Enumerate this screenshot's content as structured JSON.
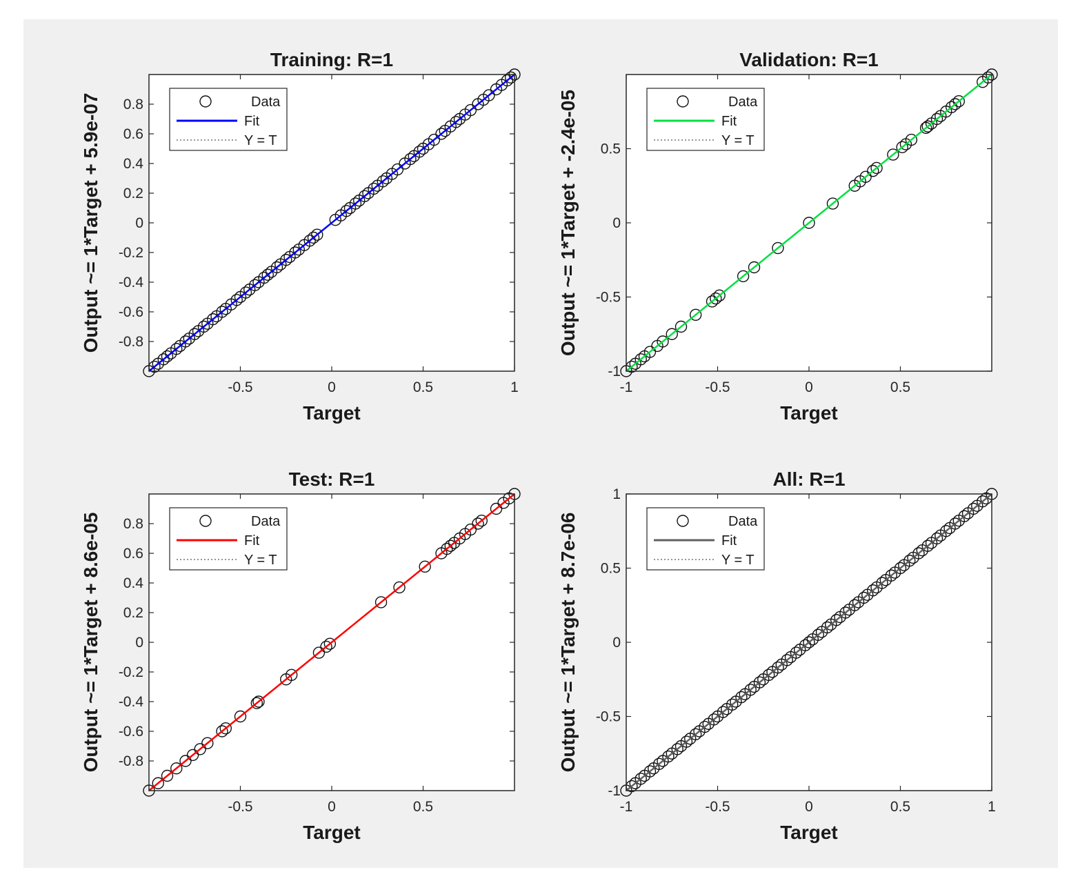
{
  "chart_data": [
    {
      "type": "scatter",
      "title": "Training: R=1",
      "xlabel": "Target",
      "ylabel": "Output ~= 1*Target + 5.9e-07",
      "xlim": [
        -1,
        1
      ],
      "ylim": [
        -1,
        1
      ],
      "xticks": [
        -0.5,
        0,
        0.5,
        1
      ],
      "xticklabels": [
        "-0.5",
        "0",
        "0.5",
        "1"
      ],
      "yticks": [
        -0.8,
        -0.6,
        -0.4,
        -0.2,
        0,
        0.2,
        0.4,
        0.6,
        0.8
      ],
      "yticklabels": [
        "-0.8",
        "-0.6",
        "-0.4",
        "-0.2",
        "0",
        "0.2",
        "0.4",
        "0.6",
        "0.8"
      ],
      "fit_color": "#0000ff",
      "fit": {
        "slope": 1,
        "intercept": 5.9e-07
      },
      "legend": {
        "position": "top-left",
        "entries": [
          "Data",
          "Fit",
          "Y = T"
        ]
      },
      "series": [
        {
          "name": "Data",
          "x": [
            -1,
            -0.97,
            -0.95,
            -0.92,
            -0.9,
            -0.88,
            -0.85,
            -0.83,
            -0.8,
            -0.78,
            -0.75,
            -0.73,
            -0.7,
            -0.68,
            -0.65,
            -0.63,
            -0.6,
            -0.58,
            -0.55,
            -0.52,
            -0.5,
            -0.47,
            -0.45,
            -0.42,
            -0.4,
            -0.37,
            -0.35,
            -0.33,
            -0.3,
            -0.28,
            -0.25,
            -0.23,
            -0.2,
            -0.18,
            -0.15,
            -0.12,
            -0.1,
            -0.08,
            0.02,
            0.05,
            0.08,
            0.1,
            0.13,
            0.15,
            0.18,
            0.2,
            0.23,
            0.25,
            0.28,
            0.3,
            0.33,
            0.36,
            0.4,
            0.43,
            0.45,
            0.48,
            0.5,
            0.53,
            0.56,
            0.6,
            0.62,
            0.65,
            0.68,
            0.7,
            0.73,
            0.76,
            0.8,
            0.83,
            0.86,
            0.9,
            0.93,
            0.96,
            0.98,
            1
          ]
        }
      ]
    },
    {
      "type": "scatter",
      "title": "Validation: R=1",
      "xlabel": "Target",
      "ylabel": "Output ~= 1*Target + -2.4e-05",
      "xlim": [
        -1,
        1
      ],
      "ylim": [
        -1,
        1
      ],
      "xticks": [
        -1,
        -0.5,
        0,
        0.5
      ],
      "xticklabels": [
        "-1",
        "-0.5",
        "0",
        "0.5"
      ],
      "yticks": [
        -1,
        -0.5,
        0,
        0.5
      ],
      "yticklabels": [
        "-1",
        "-0.5",
        "0",
        "0.5"
      ],
      "fit_color": "#00e040",
      "fit": {
        "slope": 1,
        "intercept": -2.4e-05
      },
      "legend": {
        "position": "top-left",
        "entries": [
          "Data",
          "Fit",
          "Y = T"
        ]
      },
      "series": [
        {
          "name": "Data",
          "x": [
            -1,
            -0.97,
            -0.95,
            -0.92,
            -0.9,
            -0.87,
            -0.83,
            -0.8,
            -0.75,
            -0.7,
            -0.62,
            -0.53,
            -0.51,
            -0.49,
            -0.36,
            -0.3,
            -0.17,
            0,
            0.13,
            0.25,
            0.28,
            0.31,
            0.35,
            0.37,
            0.46,
            0.51,
            0.53,
            0.56,
            0.64,
            0.65,
            0.67,
            0.7,
            0.72,
            0.75,
            0.78,
            0.8,
            0.82,
            0.95,
            0.98,
            1
          ]
        }
      ]
    },
    {
      "type": "scatter",
      "title": "Test: R=1",
      "xlabel": "Target",
      "ylabel": "Output ~= 1*Target + 8.6e-05",
      "xlim": [
        -1,
        1
      ],
      "ylim": [
        -1,
        1
      ],
      "xticks": [
        -0.5,
        0,
        0.5
      ],
      "xticklabels": [
        "-0.5",
        "0",
        "0.5"
      ],
      "yticks": [
        -0.8,
        -0.6,
        -0.4,
        -0.2,
        0,
        0.2,
        0.4,
        0.6,
        0.8
      ],
      "yticklabels": [
        "-0.8",
        "-0.6",
        "-0.4",
        "-0.2",
        "0",
        "0.2",
        "0.4",
        "0.6",
        "0.8"
      ],
      "fit_color": "#ff0000",
      "fit": {
        "slope": 1,
        "intercept": 8.6e-05
      },
      "legend": {
        "position": "top-left",
        "entries": [
          "Data",
          "Fit",
          "Y = T"
        ]
      },
      "series": [
        {
          "name": "Data",
          "x": [
            -1,
            -0.95,
            -0.9,
            -0.85,
            -0.8,
            -0.76,
            -0.72,
            -0.68,
            -0.6,
            -0.58,
            -0.5,
            -0.41,
            -0.4,
            -0.25,
            -0.22,
            -0.07,
            -0.03,
            -0.01,
            0.27,
            0.37,
            0.51,
            0.6,
            0.63,
            0.65,
            0.67,
            0.7,
            0.73,
            0.76,
            0.8,
            0.82,
            0.9,
            0.94,
            0.97,
            1
          ]
        }
      ]
    },
    {
      "type": "scatter",
      "title": "All: R=1",
      "xlabel": "Target",
      "ylabel": "Output ~= 1*Target + 8.7e-06",
      "xlim": [
        -1,
        1
      ],
      "ylim": [
        -1,
        1
      ],
      "xticks": [
        -1,
        -0.5,
        0,
        0.5,
        1
      ],
      "xticklabels": [
        "-1",
        "-0.5",
        "0",
        "0.5",
        "1"
      ],
      "yticks": [
        -1,
        -0.5,
        0,
        0.5,
        1
      ],
      "yticklabels": [
        "-1",
        "-0.5",
        "0",
        "0.5",
        "1"
      ],
      "fit_color": "#606060",
      "fit": {
        "slope": 1,
        "intercept": 8.7e-06
      },
      "legend": {
        "position": "top-left",
        "entries": [
          "Data",
          "Fit",
          "Y = T"
        ]
      },
      "series": [
        {
          "name": "Data",
          "x": [
            -1,
            -0.97,
            -0.95,
            -0.92,
            -0.9,
            -0.87,
            -0.85,
            -0.82,
            -0.8,
            -0.77,
            -0.75,
            -0.72,
            -0.7,
            -0.67,
            -0.65,
            -0.62,
            -0.6,
            -0.57,
            -0.55,
            -0.52,
            -0.5,
            -0.47,
            -0.45,
            -0.42,
            -0.4,
            -0.37,
            -0.35,
            -0.32,
            -0.3,
            -0.27,
            -0.25,
            -0.22,
            -0.2,
            -0.17,
            -0.15,
            -0.12,
            -0.1,
            -0.07,
            -0.05,
            -0.02,
            0,
            0.02,
            0.05,
            0.07,
            0.1,
            0.12,
            0.15,
            0.17,
            0.2,
            0.22,
            0.25,
            0.27,
            0.3,
            0.32,
            0.35,
            0.37,
            0.4,
            0.42,
            0.45,
            0.47,
            0.5,
            0.52,
            0.55,
            0.57,
            0.6,
            0.62,
            0.65,
            0.67,
            0.7,
            0.72,
            0.75,
            0.77,
            0.8,
            0.82,
            0.85,
            0.87,
            0.9,
            0.92,
            0.95,
            0.97,
            1
          ]
        }
      ]
    }
  ]
}
